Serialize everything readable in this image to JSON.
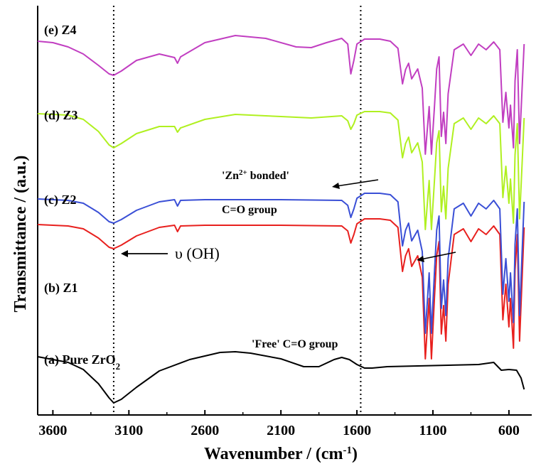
{
  "chart_data": {
    "type": "line",
    "title": "",
    "xlabel": "Wavenumber / (cm",
    "xlabel_sup": "-1",
    "xlabel_close": ")",
    "ylabel": "Transmittance / (a.u.)",
    "xlim": [
      3700,
      450
    ],
    "x_reversed": true,
    "y_ticks_shown": false,
    "grid": false,
    "x_ticks": [
      3600,
      3100,
      2600,
      2100,
      1600,
      1100,
      600
    ],
    "x_tick_labels": [
      "3600",
      "3100",
      "2600",
      "2100",
      "1600",
      "1100",
      "600"
    ],
    "reference_lines": [
      3200,
      1575
    ],
    "series": [
      {
        "label_prefix": "(a) Pure ZrO",
        "label_sub": "2",
        "color": "#000000",
        "points": [
          [
            3700,
            502
          ],
          [
            3600,
            506
          ],
          [
            3500,
            510
          ],
          [
            3400,
            520
          ],
          [
            3300,
            540
          ],
          [
            3230,
            560
          ],
          [
            3200,
            567
          ],
          [
            3150,
            562
          ],
          [
            3050,
            545
          ],
          [
            2900,
            522
          ],
          [
            2700,
            506
          ],
          [
            2500,
            496
          ],
          [
            2400,
            495
          ],
          [
            2300,
            497
          ],
          [
            2100,
            505
          ],
          [
            1950,
            516
          ],
          [
            1850,
            516
          ],
          [
            1750,
            506
          ],
          [
            1700,
            503
          ],
          [
            1650,
            506
          ],
          [
            1600,
            513
          ],
          [
            1550,
            518
          ],
          [
            1500,
            518
          ],
          [
            1400,
            516
          ],
          [
            1200,
            515
          ],
          [
            1000,
            514
          ],
          [
            800,
            513
          ],
          [
            700,
            510
          ],
          [
            650,
            521
          ],
          [
            600,
            520
          ],
          [
            550,
            521
          ],
          [
            520,
            532
          ],
          [
            500,
            548
          ]
        ]
      },
      {
        "label": "(b) Z1",
        "color": "#e8201e",
        "points": [
          [
            3700,
            316
          ],
          [
            3500,
            318
          ],
          [
            3400,
            322
          ],
          [
            3300,
            335
          ],
          [
            3230,
            348
          ],
          [
            3200,
            350
          ],
          [
            3150,
            345
          ],
          [
            3050,
            332
          ],
          [
            2900,
            320
          ],
          [
            2800,
            317
          ],
          [
            2780,
            326
          ],
          [
            2760,
            318
          ],
          [
            2600,
            317
          ],
          [
            2100,
            317
          ],
          [
            1700,
            318
          ],
          [
            1660,
            325
          ],
          [
            1640,
            342
          ],
          [
            1620,
            330
          ],
          [
            1600,
            315
          ],
          [
            1550,
            308
          ],
          [
            1450,
            308
          ],
          [
            1380,
            310
          ],
          [
            1330,
            320
          ],
          [
            1300,
            382
          ],
          [
            1280,
            360
          ],
          [
            1260,
            350
          ],
          [
            1240,
            375
          ],
          [
            1200,
            360
          ],
          [
            1170,
            390
          ],
          [
            1150,
            505
          ],
          [
            1125,
            420
          ],
          [
            1110,
            505
          ],
          [
            1090,
            420
          ],
          [
            1075,
            360
          ],
          [
            1060,
            340
          ],
          [
            1045,
            470
          ],
          [
            1030,
            430
          ],
          [
            1015,
            480
          ],
          [
            1000,
            400
          ],
          [
            960,
            330
          ],
          [
            900,
            322
          ],
          [
            850,
            340
          ],
          [
            800,
            322
          ],
          [
            750,
            330
          ],
          [
            700,
            318
          ],
          [
            660,
            330
          ],
          [
            640,
            450
          ],
          [
            620,
            400
          ],
          [
            600,
            460
          ],
          [
            590,
            420
          ],
          [
            570,
            490
          ],
          [
            560,
            380
          ],
          [
            545,
            330
          ],
          [
            530,
            480
          ],
          [
            515,
            400
          ],
          [
            500,
            320
          ]
        ]
      },
      {
        "label": "(c) Z2",
        "color": "#3a4fd6",
        "points": [
          [
            3700,
            280
          ],
          [
            3500,
            282
          ],
          [
            3400,
            286
          ],
          [
            3300,
            299
          ],
          [
            3230,
            312
          ],
          [
            3200,
            314
          ],
          [
            3150,
            309
          ],
          [
            3050,
            296
          ],
          [
            2900,
            284
          ],
          [
            2800,
            281
          ],
          [
            2780,
            290
          ],
          [
            2760,
            282
          ],
          [
            2600,
            281
          ],
          [
            2100,
            281
          ],
          [
            1700,
            282
          ],
          [
            1660,
            289
          ],
          [
            1640,
            306
          ],
          [
            1620,
            294
          ],
          [
            1600,
            279
          ],
          [
            1550,
            272
          ],
          [
            1450,
            272
          ],
          [
            1380,
            274
          ],
          [
            1330,
            284
          ],
          [
            1300,
            346
          ],
          [
            1280,
            324
          ],
          [
            1260,
            314
          ],
          [
            1240,
            339
          ],
          [
            1200,
            324
          ],
          [
            1170,
            354
          ],
          [
            1150,
            469
          ],
          [
            1125,
            384
          ],
          [
            1110,
            469
          ],
          [
            1090,
            384
          ],
          [
            1075,
            324
          ],
          [
            1060,
            304
          ],
          [
            1045,
            434
          ],
          [
            1030,
            394
          ],
          [
            1015,
            444
          ],
          [
            1000,
            364
          ],
          [
            960,
            294
          ],
          [
            900,
            286
          ],
          [
            850,
            304
          ],
          [
            800,
            286
          ],
          [
            750,
            294
          ],
          [
            700,
            282
          ],
          [
            660,
            294
          ],
          [
            640,
            414
          ],
          [
            620,
            364
          ],
          [
            600,
            424
          ],
          [
            590,
            384
          ],
          [
            570,
            454
          ],
          [
            560,
            344
          ],
          [
            545,
            294
          ],
          [
            530,
            444
          ],
          [
            515,
            364
          ],
          [
            500,
            284
          ]
        ]
      },
      {
        "label": "(d) Z3",
        "color": "#b0f020",
        "points": [
          [
            3700,
            160
          ],
          [
            3500,
            162
          ],
          [
            3400,
            168
          ],
          [
            3300,
            185
          ],
          [
            3230,
            204
          ],
          [
            3200,
            208
          ],
          [
            3150,
            202
          ],
          [
            3050,
            188
          ],
          [
            2900,
            178
          ],
          [
            2800,
            178
          ],
          [
            2780,
            186
          ],
          [
            2760,
            180
          ],
          [
            2600,
            168
          ],
          [
            2400,
            161
          ],
          [
            2100,
            164
          ],
          [
            1900,
            166
          ],
          [
            1700,
            163
          ],
          [
            1660,
            170
          ],
          [
            1640,
            182
          ],
          [
            1620,
            174
          ],
          [
            1600,
            162
          ],
          [
            1550,
            157
          ],
          [
            1450,
            157
          ],
          [
            1380,
            159
          ],
          [
            1330,
            169
          ],
          [
            1300,
            222
          ],
          [
            1280,
            202
          ],
          [
            1260,
            193
          ],
          [
            1240,
            215
          ],
          [
            1200,
            201
          ],
          [
            1170,
            228
          ],
          [
            1150,
            323
          ],
          [
            1125,
            254
          ],
          [
            1110,
            323
          ],
          [
            1090,
            255
          ],
          [
            1075,
            201
          ],
          [
            1060,
            184
          ],
          [
            1045,
            298
          ],
          [
            1030,
            262
          ],
          [
            1015,
            308
          ],
          [
            1000,
            237
          ],
          [
            960,
            174
          ],
          [
            900,
            166
          ],
          [
            850,
            182
          ],
          [
            800,
            166
          ],
          [
            750,
            174
          ],
          [
            700,
            163
          ],
          [
            660,
            174
          ],
          [
            640,
            278
          ],
          [
            620,
            234
          ],
          [
            600,
            286
          ],
          [
            590,
            252
          ],
          [
            570,
            314
          ],
          [
            560,
            218
          ],
          [
            545,
            174
          ],
          [
            530,
            308
          ],
          [
            515,
            238
          ],
          [
            500,
            166
          ]
        ]
      },
      {
        "label": "(e) Z4",
        "color": "#c13ec1",
        "points": [
          [
            3700,
            58
          ],
          [
            3600,
            60
          ],
          [
            3500,
            66
          ],
          [
            3400,
            76
          ],
          [
            3300,
            92
          ],
          [
            3230,
            104
          ],
          [
            3200,
            106
          ],
          [
            3150,
            100
          ],
          [
            3050,
            85
          ],
          [
            2900,
            76
          ],
          [
            2800,
            81
          ],
          [
            2780,
            89
          ],
          [
            2760,
            80
          ],
          [
            2600,
            60
          ],
          [
            2400,
            50
          ],
          [
            2200,
            54
          ],
          [
            2000,
            66
          ],
          [
            1900,
            67
          ],
          [
            1800,
            60
          ],
          [
            1700,
            54
          ],
          [
            1660,
            62
          ],
          [
            1640,
            104
          ],
          [
            1620,
            85
          ],
          [
            1600,
            62
          ],
          [
            1550,
            55
          ],
          [
            1450,
            55
          ],
          [
            1380,
            58
          ],
          [
            1330,
            68
          ],
          [
            1300,
            118
          ],
          [
            1280,
            98
          ],
          [
            1260,
            89
          ],
          [
            1240,
            111
          ],
          [
            1200,
            97
          ],
          [
            1170,
            124
          ],
          [
            1150,
            217
          ],
          [
            1125,
            150
          ],
          [
            1110,
            217
          ],
          [
            1090,
            151
          ],
          [
            1075,
            97
          ],
          [
            1060,
            80
          ],
          [
            1045,
            192
          ],
          [
            1030,
            158
          ],
          [
            1015,
            202
          ],
          [
            1000,
            132
          ],
          [
            960,
            70
          ],
          [
            900,
            62
          ],
          [
            850,
            78
          ],
          [
            800,
            62
          ],
          [
            750,
            70
          ],
          [
            700,
            59
          ],
          [
            660,
            70
          ],
          [
            640,
            172
          ],
          [
            620,
            130
          ],
          [
            600,
            180
          ],
          [
            590,
            148
          ],
          [
            570,
            208
          ],
          [
            560,
            114
          ],
          [
            545,
            70
          ],
          [
            530,
            202
          ],
          [
            515,
            132
          ],
          [
            500,
            62
          ]
        ]
      }
    ],
    "annotations": {
      "oh_text": "υ (OH)",
      "free_co": "'Free' C=O group",
      "zn_bonded_prefix": "'Zn",
      "zn_bonded_sup": "2+",
      "zn_bonded_suffix": " bonded'",
      "zn_bonded_line2": "C=O group"
    },
    "y_units": "pixel-row scale of the original plot frame (relative transmittance, arbitrary units)"
  }
}
